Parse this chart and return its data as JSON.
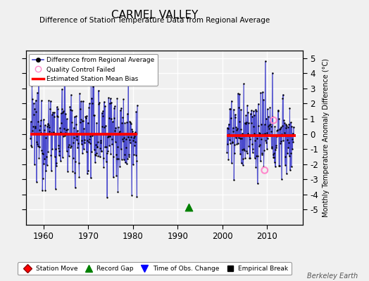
{
  "title": "CARMEL VALLEY",
  "subtitle": "Difference of Station Temperature Data from Regional Average",
  "ylabel_right": "Monthly Temperature Anomaly Difference (°C)",
  "credit": "Berkeley Earth",
  "xlim": [
    1956,
    2018
  ],
  "ylim": [
    -6,
    5.5
  ],
  "yticks": [
    -5,
    -4,
    -3,
    -2,
    -1,
    0,
    1,
    2,
    3,
    4,
    5
  ],
  "xticks": [
    1960,
    1970,
    1980,
    1990,
    2000,
    2010
  ],
  "bg_color": "#f0f0f0",
  "plot_bg_color": "#f0f0f0",
  "line_color": "#4444cc",
  "line_alpha": 0.55,
  "dot_color": "black",
  "dot_size": 3,
  "bias1_y": 0.0,
  "bias1_xstart": 1957.0,
  "bias1_xend": 1981.0,
  "bias2_y": -0.1,
  "bias2_xstart": 2001.0,
  "bias2_xend": 2016.5,
  "bias_color": "red",
  "bias_lw": 2.8,
  "record_gap_x": 1992.5,
  "record_gap_y": -4.85,
  "qc_fail_x1": 2011.5,
  "qc_fail_y1": 0.9,
  "qc_fail_x2": 2009.5,
  "qc_fail_y2": -2.4,
  "grid_color": "white",
  "seed": 12345,
  "period1_start": 1957,
  "period1_end": 1981,
  "period2_start": 2001,
  "period2_end": 2016,
  "period1_bias": 0.05,
  "period1_amp": 1.6,
  "period2_bias": -0.1,
  "period2_amp": 1.3
}
